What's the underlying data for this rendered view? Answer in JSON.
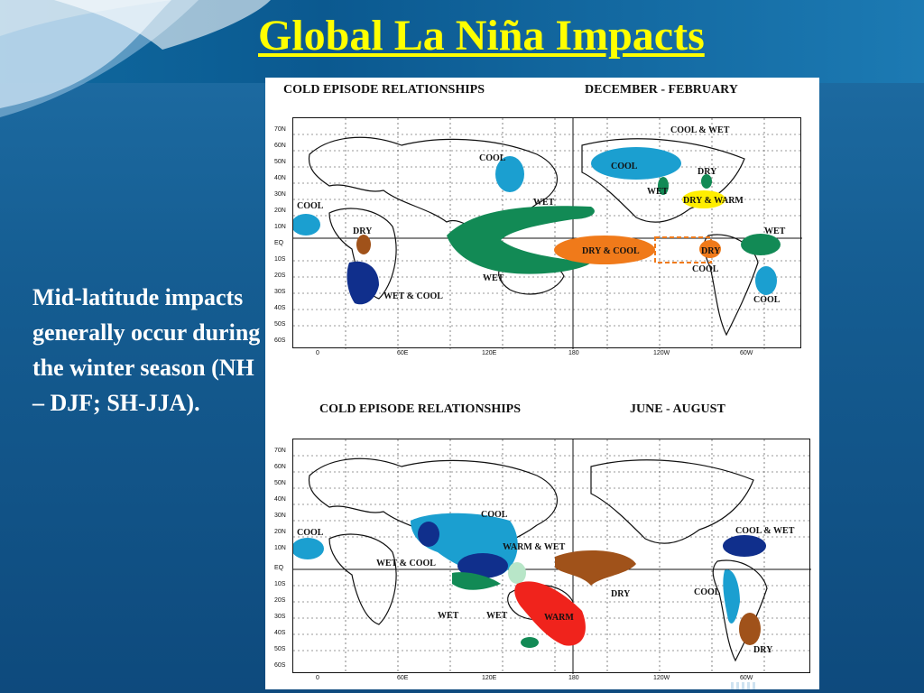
{
  "slide": {
    "title": "Global La Niña Impacts",
    "body": "Mid-latitude impacts generally occur during the winter season (NH – DJF; SH-JJA)."
  },
  "maps": {
    "djf": {
      "caption_left": "COLD EPISODE RELATIONSHIPS",
      "caption_right": "DECEMBER - FEBRUARY",
      "lat_labels": [
        "70N",
        "60N",
        "50N",
        "40N",
        "30N",
        "20N",
        "10N",
        "EQ",
        "10S",
        "20S",
        "30S",
        "40S",
        "50S",
        "60S"
      ],
      "lon_labels": [
        "0",
        "60E",
        "120E",
        "180",
        "120W",
        "60W"
      ],
      "regions": {
        "cool_w_africa": "COOL",
        "dry_e_africa": "DRY",
        "wet_cool_s_africa": "WET & COOL",
        "cool_japan": "COOL",
        "wet_n": "WET",
        "wet_s": "WET",
        "cool_alaska": "COOL",
        "wet_nw_us": "WET",
        "cool_wet_ne": "COOL & WET",
        "dry_se": "DRY",
        "dry_warm": "DRY & WARM",
        "dry_cool_pacific": "DRY & COOL",
        "dry_e_pacific": "DRY",
        "cool_e_pacific": "COOL",
        "wet_n_sa": "WET",
        "cool_se_sa": "COOL"
      }
    },
    "jja": {
      "caption_left": "COLD EPISODE RELATIONSHIPS",
      "caption_right": "JUNE - AUGUST",
      "lat_labels": [
        "70N",
        "60N",
        "50N",
        "40N",
        "30N",
        "20N",
        "10N",
        "EQ",
        "10S",
        "20S",
        "30S",
        "40S",
        "50S",
        "60S"
      ],
      "lon_labels": [
        "0",
        "60E",
        "120E",
        "180",
        "120W",
        "60W"
      ],
      "regions": {
        "cool_w_africa": "COOL",
        "cool_e_asia": "COOL",
        "warm_wet": "WARM & WET",
        "wet_cool": "WET & COOL",
        "dry_pacific": "DRY",
        "wet_1": "WET",
        "wet_2": "WET",
        "warm_aus": "WARM",
        "cool_wet_caribbean": "COOL & WET",
        "cool_sa": "COOL",
        "dry_sa": "DRY"
      }
    }
  },
  "colors": {
    "title": "#ffff00",
    "cool": "#1b9fd0",
    "wet": "#128a55",
    "dry": "#a0521a",
    "warm": "#f0231c",
    "dry_cool": "#f07a1a",
    "dry_warm": "#ffee00",
    "dark_blue": "#102f8c"
  }
}
